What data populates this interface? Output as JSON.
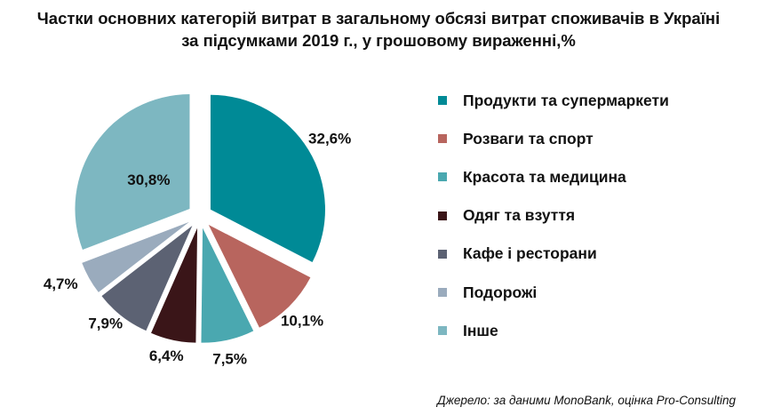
{
  "title": {
    "line1": "Частки основних категорій витрат в загальному обсязі витрат споживачів в Україні",
    "line2": "за підсумками 2019 г., у грошовому вираженні,%"
  },
  "chart_data": {
    "type": "pie",
    "title": "Частки основних категорій витрат в загальному обсязі витрат споживачів в Україні за підсумками 2019 г., у грошовому вираженні,%",
    "legend_position": "right",
    "exploded": true,
    "slices": [
      {
        "name": "Продукти та супермаркети",
        "value": 32.6,
        "label": "32,6%",
        "color": "#008a96"
      },
      {
        "name": "Розваги та спорт",
        "value": 10.1,
        "label": "10,1%",
        "color": "#b8655e"
      },
      {
        "name": "Красота та медицина",
        "value": 7.5,
        "label": "7,5%",
        "color": "#4aa8b0"
      },
      {
        "name": "Одяг та взуття",
        "value": 6.4,
        "label": "6,4%",
        "color": "#3a1518"
      },
      {
        "name": "Кафе і ресторани",
        "value": 7.9,
        "label": "7,9%",
        "color": "#5c6273"
      },
      {
        "name": "Подорожі",
        "value": 4.7,
        "label": "4,7%",
        "color": "#9aabbd"
      },
      {
        "name": "Інше",
        "value": 30.8,
        "label": "30,8%",
        "color": "#7db7c1"
      }
    ]
  },
  "source": "Джерело: за даними MonoBank, оцінка Pro-Consulting"
}
